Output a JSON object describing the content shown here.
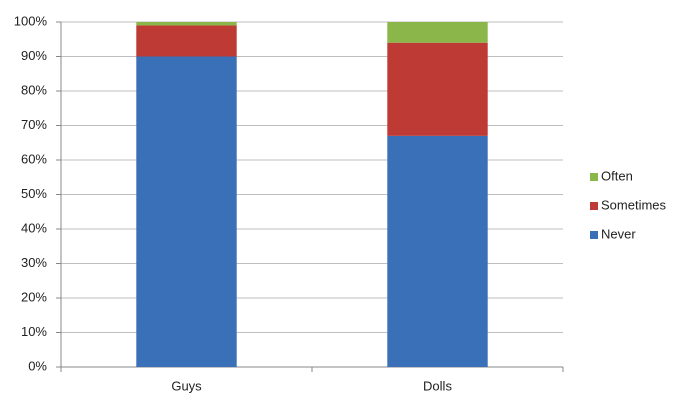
{
  "chart_data": {
    "type": "stacked_bar",
    "categories": [
      "Guys",
      "Dolls"
    ],
    "series": [
      {
        "name": "Never",
        "color": "#3a70b8",
        "values": [
          90,
          67
        ]
      },
      {
        "name": "Sometimes",
        "color": "#be3a34",
        "values": [
          9,
          27
        ]
      },
      {
        "name": "Often",
        "color": "#8ab64a",
        "values": [
          1,
          6
        ]
      }
    ],
    "ylim": [
      0,
      100
    ],
    "yticks": [
      {
        "value": 0,
        "label": "0%"
      },
      {
        "value": 10,
        "label": "10%"
      },
      {
        "value": 20,
        "label": "20%"
      },
      {
        "value": 30,
        "label": "30%"
      },
      {
        "value": 40,
        "label": "40%"
      },
      {
        "value": 50,
        "label": "50%"
      },
      {
        "value": 60,
        "label": "60%"
      },
      {
        "value": 70,
        "label": "70%"
      },
      {
        "value": 80,
        "label": "80%"
      },
      {
        "value": 90,
        "label": "90%"
      },
      {
        "value": 100,
        "label": "100%"
      }
    ],
    "grid": true,
    "legend": "right"
  }
}
